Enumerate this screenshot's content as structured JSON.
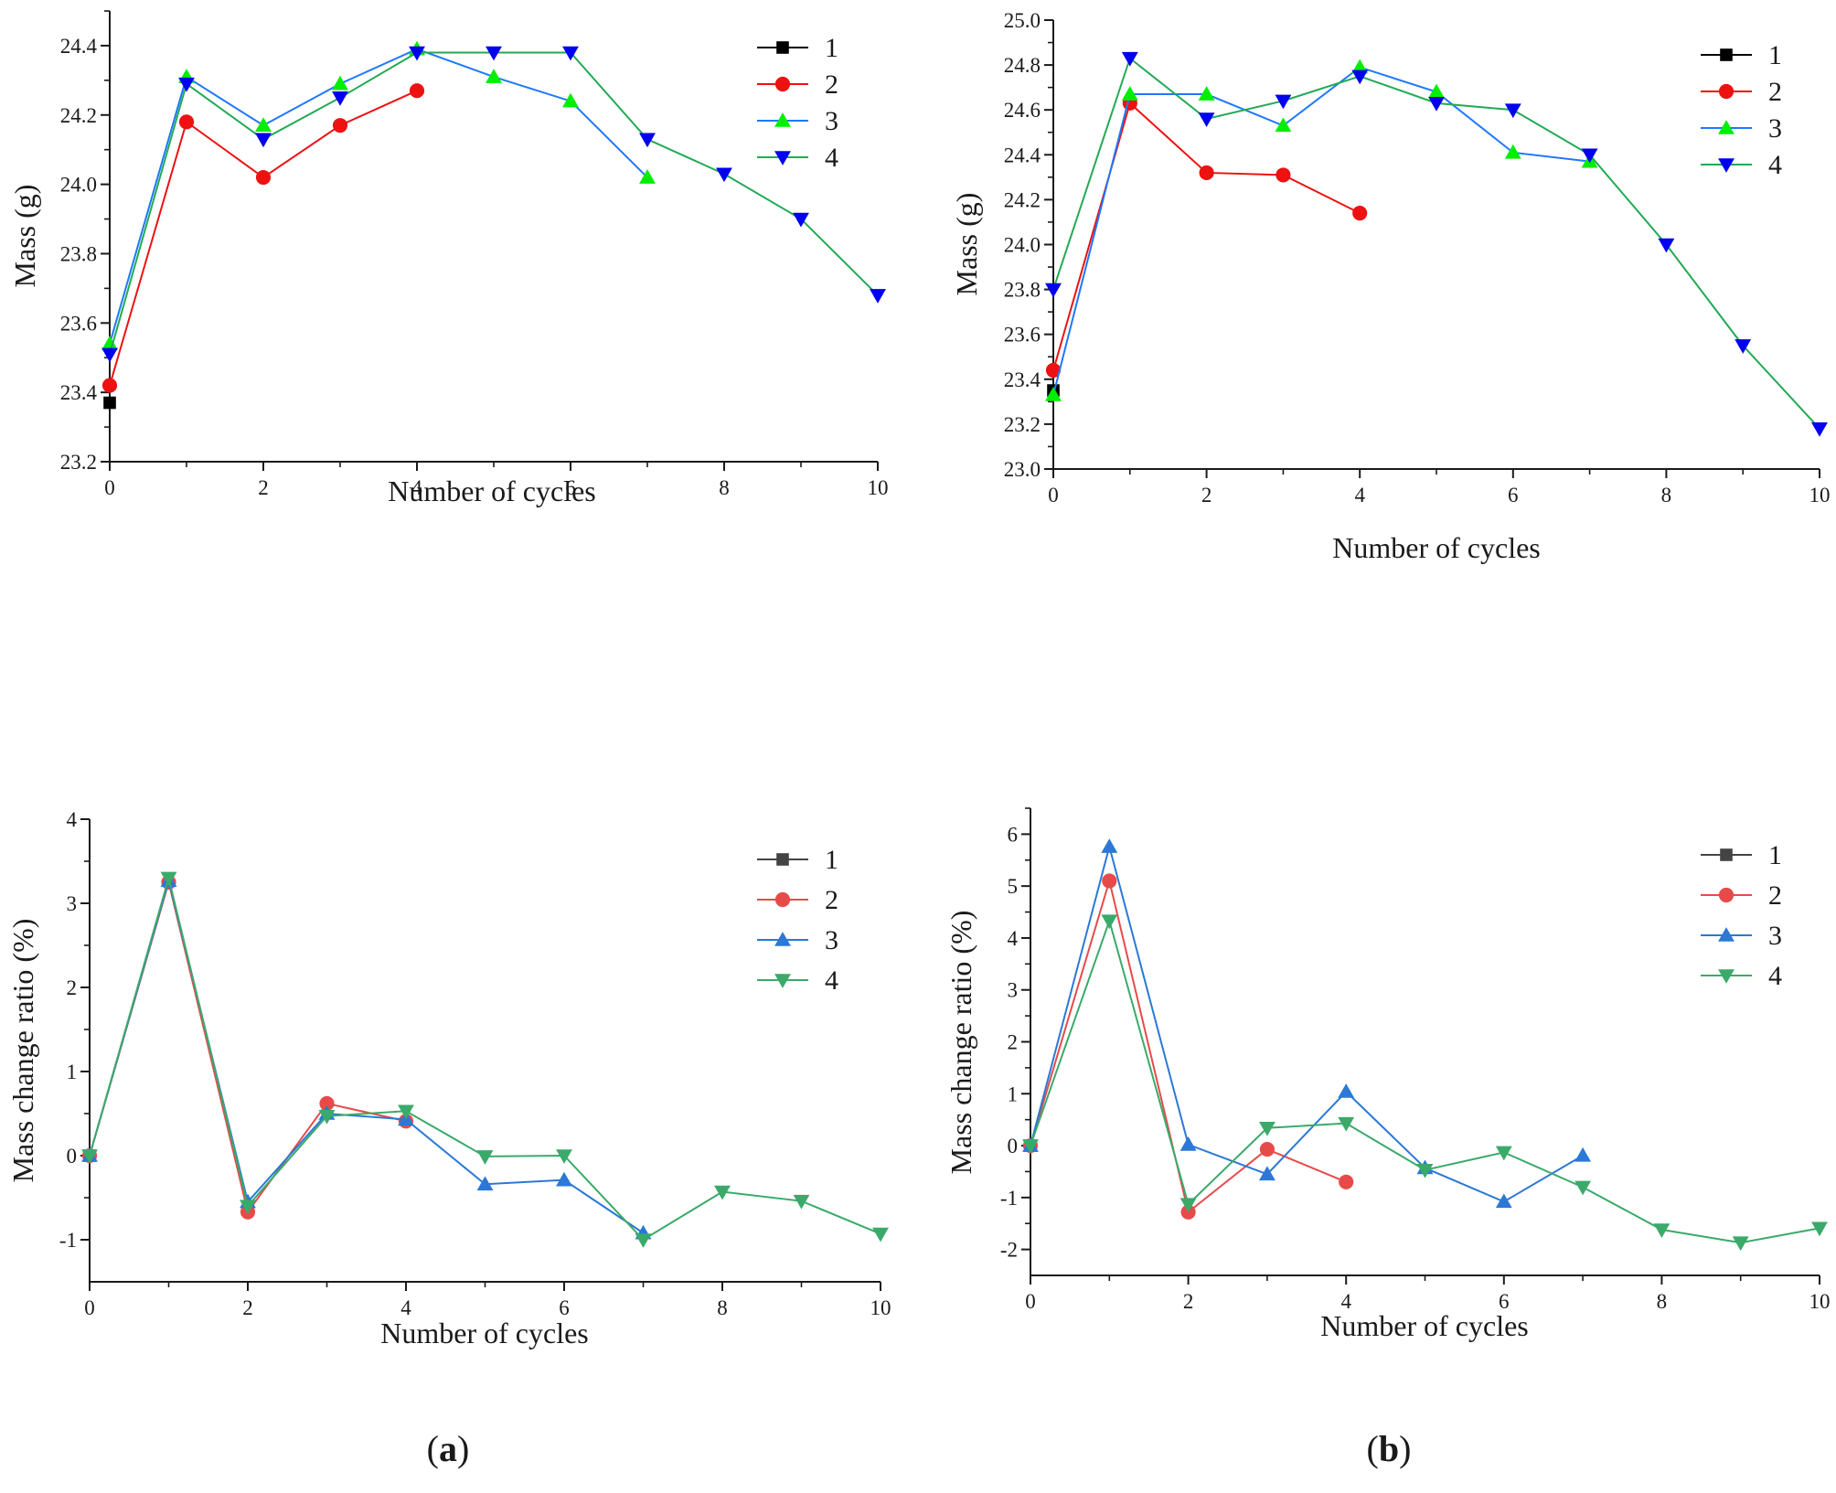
{
  "captions": {
    "a": "a",
    "b": "b"
  },
  "chart_data": [
    {
      "id": "a-mass",
      "type": "line",
      "title": "",
      "xlabel": "Number of cycles",
      "ylabel": "Mass (g)",
      "xlim": [
        0,
        10
      ],
      "ylim": [
        23.2,
        24.5
      ],
      "xticks": [
        0,
        2,
        4,
        6,
        8,
        10
      ],
      "xtick_labels": [
        "0",
        "2",
        "4",
        "6",
        "8",
        "10"
      ],
      "yticks": [
        23.2,
        23.4,
        23.6,
        23.8,
        24.0,
        24.2,
        24.4
      ],
      "ytick_labels": [
        "23.2",
        "23.4",
        "23.6",
        "23.8",
        "24.0",
        "24.2",
        "24.4"
      ],
      "legend": "top-right",
      "series": [
        {
          "name": "1",
          "color": "#000000",
          "line_color": "#000000",
          "marker": "square",
          "x": [
            0
          ],
          "values": [
            23.37
          ]
        },
        {
          "name": "2",
          "color": "#ee1111",
          "line_color": "#ee1111",
          "marker": "circle",
          "x": [
            0,
            1,
            2,
            3,
            4
          ],
          "values": [
            23.42,
            24.18,
            24.02,
            24.17,
            24.27
          ]
        },
        {
          "name": "3",
          "color": "#00ee00",
          "line_color": "#1e78ff",
          "marker": "triangle-up",
          "x": [
            0,
            1,
            2,
            3,
            4,
            5,
            6,
            7
          ],
          "values": [
            23.54,
            24.31,
            24.17,
            24.29,
            24.39,
            24.31,
            24.24,
            24.02
          ]
        },
        {
          "name": "4",
          "color": "#0000ee",
          "line_color": "#22aa55",
          "marker": "triangle-down",
          "x": [
            0,
            1,
            2,
            3,
            4,
            5,
            6,
            7,
            8,
            9,
            10
          ],
          "values": [
            23.51,
            24.29,
            24.13,
            24.25,
            24.38,
            24.38,
            24.38,
            24.13,
            24.03,
            23.9,
            23.68
          ]
        }
      ]
    },
    {
      "id": "b-mass",
      "type": "line",
      "title": "",
      "xlabel": "Number of cycles",
      "ylabel": "Mass (g)",
      "xlim": [
        0,
        10
      ],
      "ylim": [
        23.0,
        25.0
      ],
      "xticks": [
        0,
        2,
        4,
        6,
        8,
        10
      ],
      "xtick_labels": [
        "0",
        "2",
        "4",
        "6",
        "8",
        "10"
      ],
      "yticks": [
        23.0,
        23.2,
        23.4,
        23.6,
        23.8,
        24.0,
        24.2,
        24.4,
        24.6,
        24.8,
        25.0
      ],
      "ytick_labels": [
        "23.0",
        "23.2",
        "23.4",
        "23.6",
        "23.8",
        "24.0",
        "24.2",
        "24.4",
        "24.6",
        "24.8",
        "25.0"
      ],
      "legend": "top-right",
      "series": [
        {
          "name": "1",
          "color": "#000000",
          "line_color": "#000000",
          "marker": "square",
          "x": [
            0
          ],
          "values": [
            23.35
          ]
        },
        {
          "name": "2",
          "color": "#ee1111",
          "line_color": "#ee1111",
          "marker": "circle",
          "x": [
            0,
            1,
            2,
            3,
            4
          ],
          "values": [
            23.44,
            24.63,
            24.32,
            24.31,
            24.14
          ]
        },
        {
          "name": "3",
          "color": "#00ee00",
          "line_color": "#1e78ff",
          "marker": "triangle-up",
          "x": [
            0,
            1,
            2,
            3,
            4,
            5,
            6,
            7
          ],
          "values": [
            23.33,
            24.67,
            24.67,
            24.53,
            24.79,
            24.68,
            24.41,
            24.37
          ]
        },
        {
          "name": "4",
          "color": "#0000ee",
          "line_color": "#22aa55",
          "marker": "triangle-down",
          "x": [
            0,
            1,
            2,
            3,
            4,
            5,
            6,
            7,
            8,
            9,
            10
          ],
          "values": [
            23.8,
            24.83,
            24.56,
            24.64,
            24.75,
            24.63,
            24.6,
            24.4,
            24.0,
            23.55,
            23.18
          ]
        }
      ]
    },
    {
      "id": "a-ratio",
      "type": "line",
      "title": "",
      "xlabel": "Number of cycles",
      "ylabel": "Mass change ratio (%)",
      "xlim": [
        0,
        10
      ],
      "ylim": [
        -1.5,
        4
      ],
      "xticks": [
        0,
        2,
        4,
        6,
        8,
        10
      ],
      "xtick_labels": [
        "0",
        "2",
        "4",
        "6",
        "8",
        "10"
      ],
      "yticks": [
        -1,
        0,
        1,
        2,
        3,
        4
      ],
      "ytick_labels": [
        "-1",
        "0",
        "1",
        "2",
        "3",
        "4"
      ],
      "legend": "top-right",
      "series": [
        {
          "name": "1",
          "color": "#444444",
          "line_color": "#444444",
          "marker": "square",
          "x": [
            0
          ],
          "values": [
            0
          ]
        },
        {
          "name": "2",
          "color": "#e84a4a",
          "line_color": "#e84a4a",
          "marker": "circle",
          "x": [
            0,
            1,
            2,
            3,
            4
          ],
          "values": [
            0,
            3.25,
            -0.67,
            0.62,
            0.41
          ]
        },
        {
          "name": "3",
          "color": "#2b78d6",
          "line_color": "#2b78d6",
          "marker": "triangle-up",
          "x": [
            0,
            1,
            2,
            3,
            4,
            5,
            6,
            7
          ],
          "values": [
            0,
            3.27,
            -0.55,
            0.5,
            0.43,
            -0.34,
            -0.29,
            -0.92
          ]
        },
        {
          "name": "4",
          "color": "#3aaa6a",
          "line_color": "#3aaa6a",
          "marker": "triangle-down",
          "x": [
            0,
            1,
            2,
            3,
            4,
            5,
            6,
            7,
            8,
            9,
            10
          ],
          "values": [
            0,
            3.3,
            -0.6,
            0.47,
            0.53,
            -0.01,
            0.0,
            -1.0,
            -0.43,
            -0.54,
            -0.93
          ]
        }
      ]
    },
    {
      "id": "b-ratio",
      "type": "line",
      "title": "",
      "xlabel": "Number of cycles",
      "ylabel": "Mass change ratio (%)",
      "xlim": [
        0,
        10
      ],
      "ylim": [
        -2.5,
        6.5
      ],
      "xticks": [
        0,
        2,
        4,
        6,
        8,
        10
      ],
      "xtick_labels": [
        "0",
        "2",
        "4",
        "6",
        "8",
        "10"
      ],
      "yticks": [
        -2,
        -1,
        0,
        1,
        2,
        3,
        4,
        5,
        6
      ],
      "ytick_labels": [
        "-2",
        "-1",
        "0",
        "1",
        "2",
        "3",
        "4",
        "5",
        "6"
      ],
      "legend": "top-right",
      "series": [
        {
          "name": "1",
          "color": "#444444",
          "line_color": "#444444",
          "marker": "square",
          "x": [
            0
          ],
          "values": [
            0
          ]
        },
        {
          "name": "2",
          "color": "#e84a4a",
          "line_color": "#e84a4a",
          "marker": "circle",
          "x": [
            0,
            1,
            2,
            3,
            4
          ],
          "values": [
            0,
            5.1,
            -1.28,
            -0.07,
            -0.7
          ]
        },
        {
          "name": "3",
          "color": "#2b78d6",
          "line_color": "#2b78d6",
          "marker": "triangle-up",
          "x": [
            0,
            1,
            2,
            3,
            4,
            5,
            6,
            7
          ],
          "values": [
            0,
            5.76,
            0.02,
            -0.55,
            1.04,
            -0.43,
            -1.08,
            -0.19
          ]
        },
        {
          "name": "4",
          "color": "#3aaa6a",
          "line_color": "#3aaa6a",
          "marker": "triangle-down",
          "x": [
            0,
            1,
            2,
            3,
            4,
            5,
            6,
            7,
            8,
            9,
            10
          ],
          "values": [
            0,
            4.33,
            -1.13,
            0.34,
            0.43,
            -0.47,
            -0.13,
            -0.8,
            -1.62,
            -1.87,
            -1.59
          ]
        }
      ]
    }
  ]
}
